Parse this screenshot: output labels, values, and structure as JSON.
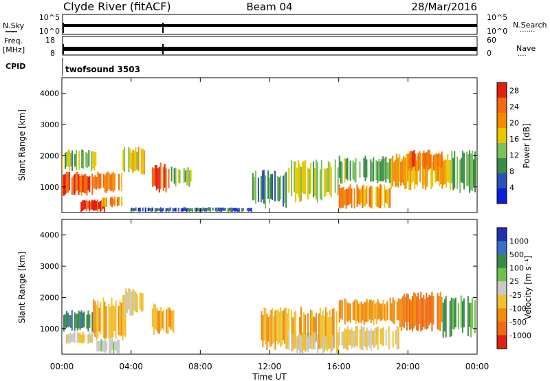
{
  "header": {
    "station": "Clyde River (fitACF)",
    "beam": "Beam 04",
    "date": "28/Mar/2016"
  },
  "params": {
    "nsky_label": "N.Sky",
    "nsky_ticks": [
      "10^5",
      "10^0"
    ],
    "nsearch_label": "N.Search",
    "freq_label": "Freq.",
    "freq_unit": "[MHz]",
    "freq_ticks": [
      "18",
      "8"
    ],
    "nave_label": "Nave",
    "nave_ticks": [
      "60",
      "0"
    ],
    "cpid_label": "CPID",
    "cpid_value": "twofsound 3503",
    "nsky_level": 0.58,
    "freq_level": 0.3
  },
  "colors": {
    "power": [
      "#0a1fd9",
      "#2c4fb8",
      "#3c8a4a",
      "#7bc05a",
      "#e8c600",
      "#f28c00",
      "#f26a10",
      "#e22010"
    ],
    "velocity": [
      "#2030b0",
      "#3a6ec8",
      "#3c8a4a",
      "#6fc04a",
      "#c8c8c8",
      "#f0c030",
      "#f08c10",
      "#f06818",
      "#e02010"
    ]
  },
  "chart_data": [
    {
      "type": "heatmap",
      "title": "Power",
      "ylabel": "Slant Range [km]",
      "xlabel": "Time UT",
      "ylim": [
        180,
        4500
      ],
      "xlim": [
        0,
        24
      ],
      "xticks": [
        "00:00",
        "04:00",
        "08:00",
        "12:00",
        "16:00",
        "20:00",
        "00:00"
      ],
      "yticks": [
        "1000",
        "2000",
        "3000",
        "4000"
      ],
      "colorbar": {
        "label": "Power [dB]",
        "ticks": [
          "4",
          "8",
          "12",
          "16",
          "20",
          "24",
          "28"
        ],
        "range": [
          0,
          30
        ]
      },
      "regions": [
        {
          "t": [
            0.0,
            1.8
          ],
          "r": [
            700,
            1500
          ],
          "value": 26
        },
        {
          "t": [
            0.0,
            2.0
          ],
          "r": [
            1500,
            2200
          ],
          "value": 14
        },
        {
          "t": [
            1.8,
            3.5
          ],
          "r": [
            800,
            1500
          ],
          "value": 22
        },
        {
          "t": [
            1.0,
            2.5
          ],
          "r": [
            200,
            600
          ],
          "value": 27
        },
        {
          "t": [
            2.3,
            3.5
          ],
          "r": [
            350,
            700
          ],
          "value": 20
        },
        {
          "t": [
            3.5,
            4.8
          ],
          "r": [
            1400,
            2300
          ],
          "value": 17
        },
        {
          "t": [
            5.2,
            6.3
          ],
          "r": [
            800,
            1800
          ],
          "value": 27
        },
        {
          "t": [
            6.3,
            7.5
          ],
          "r": [
            1000,
            1700
          ],
          "value": 13
        },
        {
          "t": [
            4.0,
            11.0
          ],
          "r": [
            200,
            350
          ],
          "value": 6
        },
        {
          "t": [
            11.0,
            13.0
          ],
          "r": [
            300,
            1600
          ],
          "value": 10
        },
        {
          "t": [
            13.0,
            16.0
          ],
          "r": [
            500,
            1900
          ],
          "value": 15
        },
        {
          "t": [
            16.0,
            19.0
          ],
          "r": [
            300,
            1100
          ],
          "value": 21
        },
        {
          "t": [
            16.0,
            19.0
          ],
          "r": [
            1100,
            2000
          ],
          "value": 12
        },
        {
          "t": [
            19.0,
            22.5
          ],
          "r": [
            900,
            2100
          ],
          "value": 19
        },
        {
          "t": [
            20.0,
            22.0
          ],
          "r": [
            1500,
            2200
          ],
          "value": 24
        },
        {
          "t": [
            22.5,
            24.0
          ],
          "r": [
            800,
            2200
          ],
          "value": 11
        }
      ]
    },
    {
      "type": "heatmap",
      "title": "Velocity",
      "ylabel": "Slant Range [km]",
      "xlabel": "Time UT",
      "ylim": [
        180,
        4500
      ],
      "xlim": [
        0,
        24
      ],
      "xticks": [
        "00:00",
        "04:00",
        "08:00",
        "12:00",
        "16:00",
        "20:00",
        "00:00"
      ],
      "yticks": [
        "1000",
        "2000",
        "3000",
        "4000"
      ],
      "colorbar": {
        "label": "Velocity [m s⁻¹]",
        "ticks": [
          "1000",
          "500",
          "100",
          "25",
          "-25",
          "-100",
          "-500",
          "-1000"
        ],
        "range": [
          -1200,
          1200
        ]
      },
      "regions": [
        {
          "t": [
            0.0,
            1.8
          ],
          "r": [
            900,
            1600
          ],
          "value": 600
        },
        {
          "t": [
            0.0,
            1.8
          ],
          "r": [
            500,
            900
          ],
          "value": -80
        },
        {
          "t": [
            1.8,
            3.8
          ],
          "r": [
            600,
            2000
          ],
          "value": -300
        },
        {
          "t": [
            2.0,
            3.5
          ],
          "r": [
            200,
            700
          ],
          "value": 0
        },
        {
          "t": [
            3.5,
            4.8
          ],
          "r": [
            1400,
            2300
          ],
          "value": -200
        },
        {
          "t": [
            5.2,
            6.5
          ],
          "r": [
            800,
            1800
          ],
          "value": -400
        },
        {
          "t": [
            11.5,
            16.0
          ],
          "r": [
            300,
            1700
          ],
          "value": -400
        },
        {
          "t": [
            13.0,
            16.0
          ],
          "r": [
            200,
            900
          ],
          "value": -150
        },
        {
          "t": [
            16.0,
            19.5
          ],
          "r": [
            300,
            1100
          ],
          "value": -150
        },
        {
          "t": [
            16.0,
            19.5
          ],
          "r": [
            1100,
            2000
          ],
          "value": -500
        },
        {
          "t": [
            19.5,
            22.0
          ],
          "r": [
            900,
            2200
          ],
          "value": -700
        },
        {
          "t": [
            22.0,
            24.0
          ],
          "r": [
            700,
            2100
          ],
          "value": 450
        }
      ]
    }
  ]
}
